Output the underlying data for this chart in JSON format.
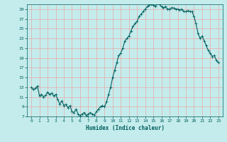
{
  "title": "",
  "xlabel": "Humidex (Indice chaleur)",
  "ylabel": "",
  "xlim": [
    -0.5,
    23.5
  ],
  "ylim": [
    7,
    30
  ],
  "yticks": [
    7,
    9,
    11,
    13,
    15,
    17,
    19,
    21,
    23,
    25,
    27,
    29
  ],
  "xticks": [
    0,
    1,
    2,
    3,
    4,
    5,
    6,
    7,
    8,
    9,
    10,
    11,
    12,
    13,
    14,
    15,
    16,
    17,
    18,
    19,
    20,
    21,
    22,
    23
  ],
  "bg_color": "#c5ecec",
  "grid_color": "#e8a8a8",
  "line_color": "#005f5f",
  "line_width": 0.8,
  "marker": "+",
  "marker_size": 2.5,
  "x": [
    0,
    0.25,
    0.5,
    0.75,
    1.0,
    1.25,
    1.5,
    1.75,
    2.0,
    2.25,
    2.5,
    2.75,
    3.0,
    3.25,
    3.5,
    3.75,
    4.0,
    4.25,
    4.5,
    4.75,
    5.0,
    5.25,
    5.5,
    5.75,
    6.0,
    6.25,
    6.5,
    6.75,
    7.0,
    7.25,
    7.5,
    7.75,
    8.0,
    8.25,
    8.5,
    8.75,
    9.0,
    9.25,
    9.5,
    9.75,
    10.0,
    10.25,
    10.5,
    10.75,
    11.0,
    11.25,
    11.5,
    11.75,
    12.0,
    12.25,
    12.5,
    12.75,
    13.0,
    13.25,
    13.5,
    13.75,
    14.0,
    14.25,
    14.5,
    14.75,
    15.0,
    15.25,
    15.5,
    15.75,
    16.0,
    16.25,
    16.5,
    16.75,
    17.0,
    17.25,
    17.5,
    17.75,
    18.0,
    18.25,
    18.5,
    18.75,
    19.0,
    19.25,
    19.5,
    19.75,
    20.0,
    20.25,
    20.5,
    20.75,
    21.0,
    21.25,
    21.5,
    21.75,
    22.0,
    22.25,
    22.5,
    22.75,
    23.0
  ],
  "y": [
    13.0,
    12.5,
    12.8,
    13.2,
    11.2,
    11.5,
    11.0,
    11.3,
    12.0,
    11.5,
    11.8,
    11.2,
    11.5,
    10.5,
    9.5,
    10.2,
    9.2,
    9.5,
    8.8,
    9.2,
    8.0,
    7.8,
    8.5,
    7.5,
    7.2,
    7.5,
    7.8,
    7.2,
    7.5,
    7.8,
    7.5,
    7.3,
    8.0,
    8.5,
    9.0,
    9.2,
    9.0,
    10.0,
    11.5,
    13.0,
    15.0,
    16.5,
    18.0,
    19.5,
    20.0,
    21.0,
    22.5,
    23.0,
    23.5,
    24.5,
    25.5,
    26.0,
    26.5,
    27.5,
    28.0,
    28.5,
    29.0,
    29.5,
    29.8,
    30.0,
    29.8,
    29.5,
    30.2,
    30.0,
    29.5,
    29.2,
    29.5,
    29.0,
    29.0,
    29.3,
    29.2,
    29.0,
    29.0,
    28.8,
    29.0,
    28.5,
    28.5,
    28.7,
    28.5,
    28.5,
    27.5,
    26.0,
    24.0,
    23.0,
    23.5,
    22.5,
    21.5,
    20.5,
    20.0,
    19.3,
    19.5,
    18.5,
    18.0
  ]
}
